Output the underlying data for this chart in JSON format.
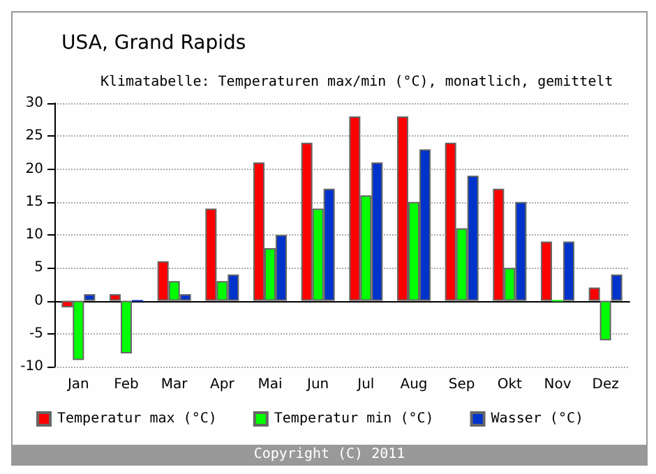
{
  "chart_data": {
    "type": "bar",
    "title": "USA, Grand Rapids",
    "subtitle": "Klimatabelle: Temperaturen max/min (°C), monatlich, gemittelt",
    "categories": [
      "Jan",
      "Feb",
      "Mar",
      "Apr",
      "Mai",
      "Jun",
      "Jul",
      "Aug",
      "Sep",
      "Okt",
      "Nov",
      "Dez"
    ],
    "series": [
      {
        "name": "Temperatur max (°C)",
        "color": "#ff0000",
        "values": [
          -1,
          1,
          6,
          14,
          21,
          24,
          28,
          28,
          24,
          17,
          9,
          2
        ]
      },
      {
        "name": "Temperatur min (°C)",
        "color": "#00ff00",
        "values": [
          -9,
          -8,
          3,
          3,
          8,
          14,
          16,
          15,
          11,
          5,
          0,
          -6
        ]
      },
      {
        "name": "Wasser (°C)",
        "color": "#0033cc",
        "values": [
          1,
          0,
          1,
          4,
          10,
          17,
          21,
          23,
          19,
          15,
          9,
          4
        ]
      }
    ],
    "ylim": [
      -10,
      30
    ],
    "yticks": [
      -10,
      -5,
      0,
      5,
      10,
      15,
      20,
      25,
      30
    ],
    "grid": "y",
    "legend": "bottom",
    "annotations": [
      "Copyright (C) 2011"
    ]
  }
}
